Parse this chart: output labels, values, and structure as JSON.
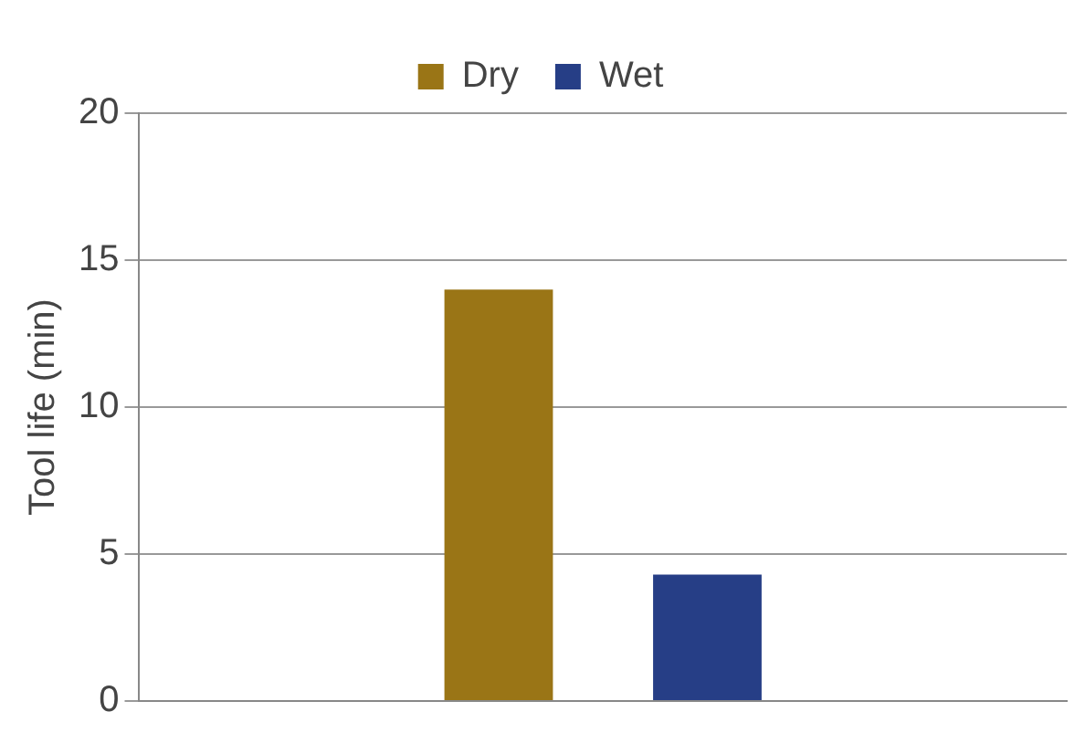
{
  "chart_data": {
    "type": "bar",
    "ylabel": "Tool life (min)",
    "categories": [
      null
    ],
    "series": [
      {
        "name": "Dry",
        "color": "#9a7516",
        "values": [
          14
        ]
      },
      {
        "name": "Wet",
        "color": "#263e86",
        "values": [
          4.3
        ]
      }
    ],
    "ylim": [
      0,
      20
    ],
    "yticks": [
      0,
      5,
      10,
      15,
      20
    ],
    "grid": "y",
    "legend": "top"
  }
}
